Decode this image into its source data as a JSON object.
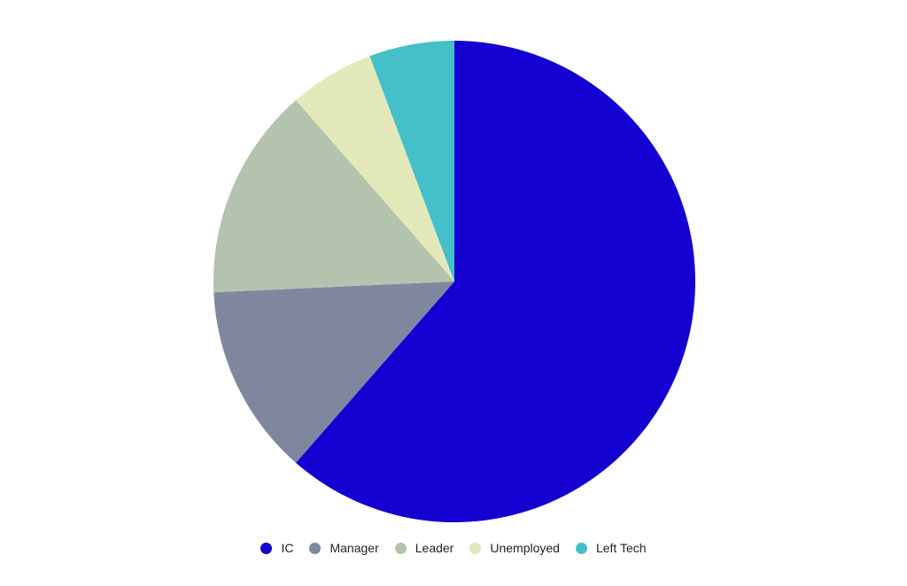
{
  "chart_data": {
    "type": "pie",
    "title": "",
    "start_angle": "top",
    "direction": "clockwise",
    "legend_position": "bottom",
    "categories": [
      "IC",
      "Manager",
      "Leader",
      "Unemployed",
      "Left Tech"
    ],
    "values": [
      43,
      9,
      10,
      4,
      4
    ],
    "colors": [
      "#1400d0",
      "#7f879e",
      "#b3c3ad",
      "#e4e9b9",
      "#45bfc8"
    ]
  }
}
